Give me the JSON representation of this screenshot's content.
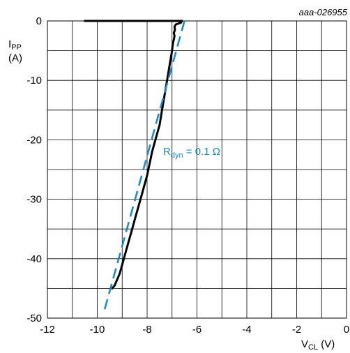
{
  "chart_data": {
    "type": "line",
    "figure_id": "aaa-026955",
    "xlabel": {
      "main": "V",
      "sub": "CL",
      "unit": " (V)"
    },
    "ylabel": {
      "main": "I",
      "sub": "PP",
      "unit": "(A)"
    },
    "xlim": [
      -12,
      0
    ],
    "ylim": [
      -50,
      0
    ],
    "xticks": [
      "-12",
      "-10",
      "-8",
      "-6",
      "-4",
      "-2",
      "0"
    ],
    "yticks": [
      "0",
      "-10",
      "-20",
      "-30",
      "-40",
      "-50"
    ],
    "grid": true,
    "series": [
      {
        "role": "measured",
        "color": "#000000",
        "x": [
          -10.5,
          -6.6,
          -6.65,
          -6.85,
          -6.9,
          -6.88,
          -6.93,
          -6.9,
          -6.92,
          -6.95,
          -6.98,
          -7.0,
          -7.1,
          -7.2,
          -7.3,
          -7.4,
          -7.5,
          -7.6,
          -7.7,
          -7.8,
          -7.9,
          -8.0,
          -8.1,
          -8.2,
          -8.3,
          -8.4,
          -8.5,
          -8.6,
          -8.7,
          -8.8,
          -8.9,
          -9.0,
          -9.1,
          -9.2,
          -9.3,
          -9.4
        ],
        "y": [
          0,
          0,
          -0.3,
          -0.6,
          -1.0,
          -1.5,
          -2.0,
          -2.5,
          -3.0,
          -3.5,
          -4.2,
          -5.0,
          -7.5,
          -10.0,
          -12.5,
          -15.0,
          -17.5,
          -19.0,
          -20.5,
          -22.0,
          -24.0,
          -26.0,
          -27.5,
          -29.0,
          -30.5,
          -32.0,
          -33.5,
          -35.0,
          -36.5,
          -38.0,
          -39.5,
          -41.0,
          -42.5,
          -43.5,
          -44.5,
          -45.0
        ]
      },
      {
        "role": "fit",
        "style": "dashed",
        "color": "#1f8bc7",
        "x": [
          -6.5,
          -9.7
        ],
        "y": [
          0,
          -48.5
        ]
      }
    ],
    "annotations": [
      {
        "main": "R",
        "sub": "dyn",
        "rest": " = 0.1 Ω",
        "color": "#1f8bc7",
        "x": -8.0,
        "y": -20.0
      }
    ]
  }
}
